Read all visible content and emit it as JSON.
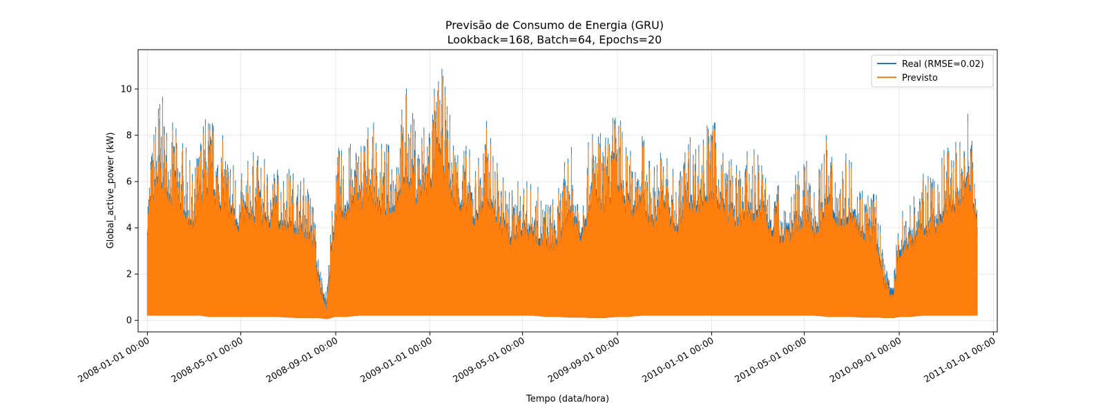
{
  "chart_data": {
    "type": "line",
    "title": "Previsão de Consumo de Energia (GRU)",
    "subtitle": "Lookback=168, Batch=64, Epochs=20",
    "xlabel": "Tempo (data/hora)",
    "ylabel": "Global_active_power (kW)",
    "xlim": [
      "2007-12-20",
      "2011-01-06"
    ],
    "ylim": [
      -0.5,
      11.7
    ],
    "grid": true,
    "legend_position": "top-right",
    "x_ticks": [
      "2008-01-01 00:00",
      "2008-05-01 00:00",
      "2008-09-01 00:00",
      "2009-01-01 00:00",
      "2009-05-01 00:00",
      "2009-09-01 00:00",
      "2010-01-01 00:00",
      "2010-05-01 00:00",
      "2010-09-01 00:00",
      "2011-01-01 00:00"
    ],
    "y_ticks": [
      0,
      2,
      4,
      6,
      8,
      10
    ],
    "x_range": [
      "2008-01-01",
      "2010-12-11"
    ],
    "series": [
      {
        "name": "Real (RMSE=0.02)",
        "color": "#1f77b4"
      },
      {
        "name": "Previsto",
        "color": "#ff7f0e"
      }
    ],
    "envelope": {
      "x": [
        "2008-01-01",
        "2008-01-15",
        "2008-02-01",
        "2008-02-15",
        "2008-03-01",
        "2008-03-10",
        "2008-03-20",
        "2008-04-01",
        "2008-04-15",
        "2008-05-01",
        "2008-05-15",
        "2008-06-01",
        "2008-06-15",
        "2008-07-01",
        "2008-07-15",
        "2008-08-01",
        "2008-08-10",
        "2008-08-20",
        "2008-09-01",
        "2008-09-15",
        "2008-10-01",
        "2008-10-15",
        "2008-11-01",
        "2008-11-15",
        "2008-12-01",
        "2008-12-15",
        "2009-01-01",
        "2009-01-15",
        "2009-02-01",
        "2009-02-15",
        "2009-03-01",
        "2009-03-15",
        "2009-04-01",
        "2009-04-15",
        "2009-05-01",
        "2009-05-15",
        "2009-06-01",
        "2009-06-15",
        "2009-07-01",
        "2009-07-15",
        "2009-08-01",
        "2009-08-15",
        "2009-09-01",
        "2009-09-15",
        "2009-10-01",
        "2009-10-15",
        "2009-11-01",
        "2009-11-15",
        "2009-12-01",
        "2009-12-15",
        "2010-01-01",
        "2010-01-15",
        "2010-02-01",
        "2010-02-15",
        "2010-03-01",
        "2010-03-15",
        "2010-04-01",
        "2010-04-15",
        "2010-05-01",
        "2010-05-15",
        "2010-06-01",
        "2010-06-15",
        "2010-07-01",
        "2010-07-15",
        "2010-08-01",
        "2010-08-15",
        "2010-08-25",
        "2010-09-01",
        "2010-09-15",
        "2010-10-01",
        "2010-10-15",
        "2010-11-01",
        "2010-11-15",
        "2010-12-01",
        "2010-12-11"
      ],
      "upper": [
        6.2,
        10.2,
        8.7,
        8.1,
        6.4,
        8.6,
        9.5,
        8.3,
        7.8,
        6.3,
        7.5,
        7.0,
        6.9,
        6.8,
        6.5,
        6.0,
        2.7,
        1.2,
        7.5,
        7.6,
        8.2,
        8.9,
        7.7,
        8.0,
        10.3,
        8.5,
        9.6,
        11.2,
        8.4,
        7.9,
        7.0,
        8.8,
        6.7,
        5.8,
        6.3,
        6.0,
        5.4,
        5.5,
        7.9,
        5.9,
        8.9,
        8.0,
        9.7,
        7.3,
        8.5,
        6.9,
        8.0,
        6.2,
        8.3,
        8.1,
        9.1,
        7.8,
        6.8,
        7.3,
        7.6,
        6.5,
        5.9,
        5.9,
        7.2,
        6.1,
        8.4,
        6.9,
        7.5,
        6.2,
        5.9,
        2.2,
        2.0,
        4.8,
        5.5,
        6.4,
        6.2,
        7.8,
        8.1,
        9.7,
        6.0
      ],
      "lower": [
        0.2,
        0.2,
        0.2,
        0.2,
        0.2,
        0.2,
        0.15,
        0.15,
        0.15,
        0.15,
        0.15,
        0.15,
        0.15,
        0.12,
        0.1,
        0.1,
        0.1,
        0.05,
        0.15,
        0.15,
        0.2,
        0.2,
        0.2,
        0.2,
        0.2,
        0.2,
        0.2,
        0.2,
        0.2,
        0.2,
        0.2,
        0.2,
        0.2,
        0.2,
        0.2,
        0.2,
        0.15,
        0.15,
        0.12,
        0.12,
        0.1,
        0.1,
        0.15,
        0.15,
        0.2,
        0.2,
        0.2,
        0.2,
        0.2,
        0.2,
        0.2,
        0.2,
        0.2,
        0.2,
        0.2,
        0.2,
        0.2,
        0.2,
        0.2,
        0.2,
        0.15,
        0.15,
        0.15,
        0.12,
        0.12,
        0.1,
        0.1,
        0.15,
        0.15,
        0.2,
        0.2,
        0.2,
        0.2,
        0.2,
        0.2
      ]
    }
  }
}
